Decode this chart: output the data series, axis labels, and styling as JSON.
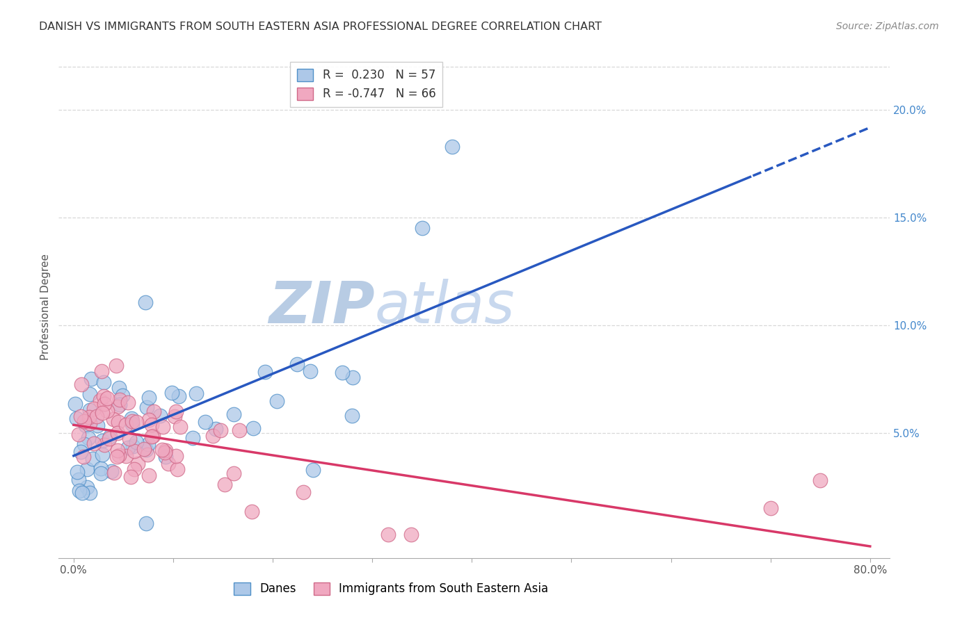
{
  "title": "DANISH VS IMMIGRANTS FROM SOUTH EASTERN ASIA PROFESSIONAL DEGREE CORRELATION CHART",
  "source": "Source: ZipAtlas.com",
  "ylabel": "Professional Degree",
  "legend_danes": "Danes",
  "legend_immigrants": "Immigrants from South Eastern Asia",
  "r_danes": 0.23,
  "n_danes": 57,
  "r_immigrants": -0.747,
  "n_immigrants": 66,
  "color_danes_fill": "#adc8e8",
  "color_danes_edge": "#5090c8",
  "color_danes_line": "#2858c0",
  "color_imm_fill": "#f0a8c0",
  "color_imm_edge": "#d06888",
  "color_imm_line": "#d83868",
  "bg_color": "#ffffff",
  "grid_color": "#d8d8d8",
  "title_color": "#333333",
  "right_tick_color": "#4488cc",
  "watermark_zip_color": "#b8cce4",
  "watermark_atlas_color": "#c8d8ee"
}
